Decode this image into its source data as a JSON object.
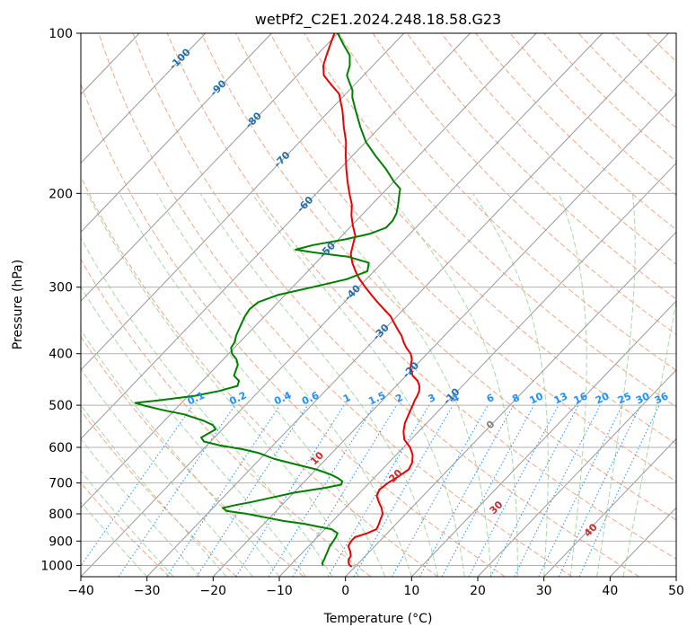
{
  "chart_data": {
    "type": "skew-t",
    "title": "wetPf2_C2E1.2024.248.18.58.G23",
    "xlabel": "Temperature (°C)",
    "ylabel": "Pressure (hPa)",
    "xlim": [
      -40,
      50
    ],
    "ylim": [
      1050,
      100
    ],
    "x_ticks": [
      -40,
      -30,
      -20,
      -10,
      0,
      10,
      20,
      30,
      40,
      50
    ],
    "x_tick_labels": [
      "−40",
      "−30",
      "−20",
      "−10",
      "0",
      "10",
      "20",
      "30",
      "40",
      "50"
    ],
    "y_ticks": [
      100,
      200,
      300,
      400,
      500,
      600,
      700,
      800,
      900,
      1000
    ],
    "y_tick_labels": [
      "100",
      "200",
      "300",
      "400",
      "500",
      "600",
      "700",
      "800",
      "900",
      "1000"
    ],
    "y_scale": "log",
    "grid": true,
    "colors": {
      "temperature": "#ee0000",
      "dewpoint": "#008000",
      "isotherm": "#999999",
      "dry_adiabat": "#f4a582",
      "moist_adiabat": "#a6d9a6",
      "mixing_ratio": "#1e90ff",
      "isotherm_label": "#1f6fb0",
      "dry_adiabat_label": "#d62728",
      "zero_isotherm_label": "#808080"
    },
    "series": [
      {
        "points": [
          [
            -0.5,
            1005
          ],
          [
            -1,
            1000
          ],
          [
            -1.5,
            990
          ],
          [
            -2,
            975
          ],
          [
            -2.2,
            960
          ],
          [
            -3,
            940
          ],
          [
            -4,
            920
          ],
          [
            -4.3,
            900
          ],
          [
            -4.3,
            885
          ],
          [
            -3,
            870
          ],
          [
            -2.2,
            855
          ],
          [
            -2.5,
            840
          ],
          [
            -3,
            820
          ],
          [
            -3.5,
            800
          ],
          [
            -4.5,
            780
          ],
          [
            -5.8,
            760
          ],
          [
            -7,
            740
          ],
          [
            -7.5,
            720
          ],
          [
            -7.2,
            700
          ],
          [
            -6.5,
            680
          ],
          [
            -6,
            660
          ],
          [
            -6.5,
            640
          ],
          [
            -7.5,
            620
          ],
          [
            -9,
            600
          ],
          [
            -11,
            580
          ],
          [
            -12.3,
            560
          ],
          [
            -13.3,
            540
          ],
          [
            -14,
            520
          ],
          [
            -14.7,
            500
          ],
          [
            -15.1,
            490
          ],
          [
            -15.4,
            480
          ],
          [
            -15.8,
            470
          ],
          [
            -16.5,
            460
          ],
          [
            -17.5,
            450
          ],
          [
            -19,
            440
          ],
          [
            -20.5,
            425
          ],
          [
            -21.5,
            410
          ],
          [
            -22.5,
            400
          ],
          [
            -24,
            390
          ],
          [
            -25.3,
            380
          ],
          [
            -26.5,
            370
          ],
          [
            -28,
            360
          ],
          [
            -29.5,
            350
          ],
          [
            -31,
            340
          ],
          [
            -33,
            330
          ],
          [
            -35,
            320
          ],
          [
            -37,
            310
          ],
          [
            -39,
            300
          ],
          [
            -41,
            290
          ],
          [
            -42.8,
            280
          ],
          [
            -44.5,
            270
          ],
          [
            -46,
            260
          ],
          [
            -47,
            250
          ],
          [
            -48,
            240
          ],
          [
            -49.8,
            230
          ],
          [
            -51.5,
            220
          ],
          [
            -53,
            210
          ],
          [
            -55,
            200
          ],
          [
            -57,
            190
          ],
          [
            -59,
            180
          ],
          [
            -61,
            170
          ],
          [
            -63,
            160
          ],
          [
            -65.5,
            150
          ],
          [
            -68,
            140
          ],
          [
            -71,
            130
          ],
          [
            -73.5,
            125
          ],
          [
            -76,
            120
          ],
          [
            -77.5,
            115
          ],
          [
            -78.5,
            110
          ],
          [
            -79.5,
            105
          ],
          [
            -80.5,
            100
          ]
        ]
      },
      {
        "points": [
          [
            -5,
            1000
          ],
          [
            -5.5,
            990
          ],
          [
            -5.7,
            975
          ],
          [
            -6,
            960
          ],
          [
            -6.4,
            940
          ],
          [
            -6.8,
            920
          ],
          [
            -7,
            900
          ],
          [
            -7.2,
            885
          ],
          [
            -7.5,
            870
          ],
          [
            -9,
            855
          ],
          [
            -11.5,
            845
          ],
          [
            -14,
            835
          ],
          [
            -17.5,
            825
          ],
          [
            -20,
            815
          ],
          [
            -24,
            800
          ],
          [
            -27.5,
            790
          ],
          [
            -28.5,
            780
          ],
          [
            -27,
            770
          ],
          [
            -25,
            760
          ],
          [
            -22.5,
            745
          ],
          [
            -20,
            730
          ],
          [
            -16,
            715
          ],
          [
            -14,
            705
          ],
          [
            -14.3,
            695
          ],
          [
            -15.5,
            685
          ],
          [
            -17,
            675
          ],
          [
            -20,
            660
          ],
          [
            -24,
            645
          ],
          [
            -28,
            630
          ],
          [
            -31,
            615
          ],
          [
            -34,
            605
          ],
          [
            -38,
            595
          ],
          [
            -41,
            585
          ],
          [
            -42,
            575
          ],
          [
            -41.5,
            565
          ],
          [
            -41,
            555
          ],
          [
            -42,
            545
          ],
          [
            -44,
            535
          ],
          [
            -48,
            520
          ],
          [
            -52,
            510
          ],
          [
            -55.5,
            500
          ],
          [
            -57,
            495
          ],
          [
            -54,
            490
          ],
          [
            -49,
            480
          ],
          [
            -46,
            470
          ],
          [
            -44,
            460
          ],
          [
            -44.5,
            450
          ],
          [
            -46,
            440
          ],
          [
            -46.5,
            430
          ],
          [
            -47,
            420
          ],
          [
            -48,
            410
          ],
          [
            -49.5,
            400
          ],
          [
            -50.5,
            390
          ],
          [
            -50.8,
            380
          ],
          [
            -51.5,
            370
          ],
          [
            -52,
            360
          ],
          [
            -52.5,
            350
          ],
          [
            -53,
            340
          ],
          [
            -53.3,
            330
          ],
          [
            -53,
            320
          ],
          [
            -51,
            310
          ],
          [
            -47,
            300
          ],
          [
            -43,
            290
          ],
          [
            -41,
            280
          ],
          [
            -42,
            270
          ],
          [
            -46,
            263
          ],
          [
            -52,
            258
          ],
          [
            -55,
            255
          ],
          [
            -53,
            250
          ],
          [
            -49,
            244
          ],
          [
            -46,
            238
          ],
          [
            -44.5,
            232
          ],
          [
            -44.5,
            225
          ],
          [
            -45,
            218
          ],
          [
            -46,
            210
          ],
          [
            -47,
            203
          ],
          [
            -48,
            196
          ],
          [
            -50,
            190
          ],
          [
            -53,
            180
          ],
          [
            -56.5,
            170
          ],
          [
            -60,
            160
          ],
          [
            -63,
            150
          ],
          [
            -66,
            140
          ],
          [
            -68.5,
            132
          ],
          [
            -69.5,
            128
          ],
          [
            -71,
            124
          ],
          [
            -72.5,
            120
          ],
          [
            -73.5,
            115
          ],
          [
            -75,
            110
          ],
          [
            -77.5,
            105
          ],
          [
            -80,
            100
          ]
        ]
      }
    ],
    "isotherm_labels": [
      {
        "t": -100,
        "text": "-100"
      },
      {
        "t": -90,
        "text": "-90"
      },
      {
        "t": -80,
        "text": "-80"
      },
      {
        "t": -70,
        "text": "-70"
      },
      {
        "t": -60,
        "text": "-60"
      },
      {
        "t": -50,
        "text": "-50"
      },
      {
        "t": -40,
        "text": "-40"
      },
      {
        "t": -30,
        "text": "-30"
      },
      {
        "t": -20,
        "text": "-20"
      },
      {
        "t": -10,
        "text": "-10"
      },
      {
        "t": 0,
        "text": "0"
      }
    ],
    "dry_adiabat_labels": [
      {
        "t": 10,
        "text": "10"
      },
      {
        "t": 20,
        "text": "20"
      },
      {
        "t": 30,
        "text": "30"
      },
      {
        "t": 40,
        "text": "40"
      }
    ],
    "mixing_ratio_labels": [
      {
        "w": 0.1,
        "text": "0.1"
      },
      {
        "w": 0.2,
        "text": "0.2"
      },
      {
        "w": 0.4,
        "text": "0.4"
      },
      {
        "w": 0.6,
        "text": "0.6"
      },
      {
        "w": 1,
        "text": "1"
      },
      {
        "w": 1.5,
        "text": "1.5"
      },
      {
        "w": 2,
        "text": "2"
      },
      {
        "w": 3,
        "text": "3"
      },
      {
        "w": 4,
        "text": "4"
      },
      {
        "w": 6,
        "text": "6"
      },
      {
        "w": 8,
        "text": "8"
      },
      {
        "w": 10,
        "text": "10"
      },
      {
        "w": 13,
        "text": "13"
      },
      {
        "w": 16,
        "text": "16"
      },
      {
        "w": 20,
        "text": "20"
      },
      {
        "w": 25,
        "text": "25"
      },
      {
        "w": 30,
        "text": "30"
      },
      {
        "w": 36,
        "text": "36"
      }
    ]
  }
}
